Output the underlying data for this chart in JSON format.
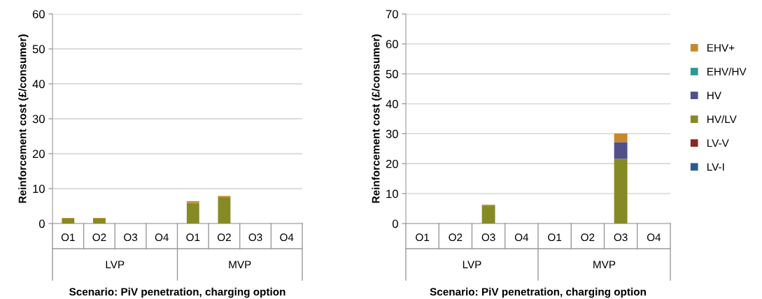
{
  "chart_data": [
    {
      "type": "bar",
      "stacked": true,
      "xlabel": "Scenario: PiV penetration, charging option",
      "ylabel": "Reinforcement cost (£/consumer)",
      "categories": [
        "O1",
        "O2",
        "O3",
        "O4",
        "O1",
        "O2",
        "O3",
        "O4"
      ],
      "annotations": [
        "LVP",
        "MVP"
      ],
      "series": [
        {
          "color": "#2a5a92",
          "values": [
            0,
            0,
            0,
            0,
            0,
            0,
            0,
            0
          ]
        },
        {
          "color": "#8b2525",
          "values": [
            0,
            0,
            0,
            0,
            0,
            0,
            0,
            0
          ]
        },
        {
          "color": "#868a24",
          "values": [
            1.4,
            1.4,
            0,
            0,
            5.9,
            7.4,
            0,
            0
          ]
        },
        {
          "color": "#50508a",
          "values": [
            0,
            0,
            0,
            0,
            0,
            0,
            0,
            0
          ]
        },
        {
          "color": "#2a9a95",
          "values": [
            0,
            0,
            0,
            0,
            0,
            0,
            0,
            0
          ]
        },
        {
          "color": "#c8882a",
          "values": [
            0.2,
            0.2,
            0,
            0,
            0.5,
            0.5,
            0,
            0
          ]
        }
      ],
      "ylim": [
        0,
        60
      ],
      "yticks": [
        0,
        10,
        20,
        30,
        40,
        50,
        60
      ],
      "grid": "y",
      "legend": false
    },
    {
      "type": "bar",
      "stacked": true,
      "xlabel": "Scenario: PiV penetration, charging option",
      "ylabel": "Reinforcement cost (£/consumer)",
      "categories": [
        "O1",
        "O2",
        "O3",
        "O4",
        "O1",
        "O2",
        "O3",
        "O4"
      ],
      "annotations": [
        "LVP",
        "MVP"
      ],
      "series": [
        {
          "name": "LV-I",
          "color": "#2a5a92",
          "values": [
            0,
            0,
            0,
            0,
            0,
            0,
            0,
            0
          ]
        },
        {
          "name": "LV-V",
          "color": "#8b2525",
          "values": [
            0,
            0,
            0,
            0,
            0,
            0,
            0,
            0
          ]
        },
        {
          "name": "HV/LV",
          "color": "#868a24",
          "values": [
            0,
            0,
            6.0,
            0,
            0,
            0,
            21.6,
            0
          ]
        },
        {
          "name": "HV",
          "color": "#50508a",
          "values": [
            0,
            0,
            0,
            0,
            0,
            0,
            5.6,
            0
          ]
        },
        {
          "name": "EHV/HV",
          "color": "#2a9a95",
          "values": [
            0,
            0,
            0,
            0,
            0,
            0,
            0,
            0
          ]
        },
        {
          "name": "EHV+",
          "color": "#c8882a",
          "values": [
            0,
            0,
            0.3,
            0,
            0,
            0,
            2.9,
            0
          ]
        }
      ],
      "ylim": [
        0,
        70
      ],
      "yticks": [
        0,
        10,
        20,
        30,
        40,
        50,
        60,
        70
      ],
      "grid": "y",
      "legend": "right"
    }
  ]
}
